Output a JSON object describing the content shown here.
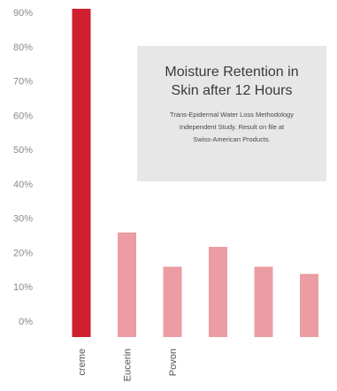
{
  "chart_data": {
    "type": "bar",
    "title": "Moisture Retention in Skin after 12 Hours",
    "title_lines": [
      "Moisture Retention in",
      "Skin after 12 Hours"
    ],
    "note_lines": [
      "Trans-Epidermal Water Loss Methodology",
      "Independent Study. Result on file at",
      "Swiss-American Products."
    ],
    "categories": [
      "creme",
      "Eucerin",
      "Povon",
      "",
      "",
      ""
    ],
    "values": [
      91,
      29,
      19.5,
      25,
      19.5,
      17.5
    ],
    "y_ticks": [
      "0%",
      "10%",
      "20%",
      "30%",
      "40%",
      "50%",
      "60%",
      "70%",
      "80%",
      "90%"
    ],
    "ylim": [
      0,
      90
    ],
    "grid": false,
    "colors": {
      "highlight": "#cf1f30",
      "other": "#ec9ca3",
      "panel": "#e7e7e7"
    }
  }
}
